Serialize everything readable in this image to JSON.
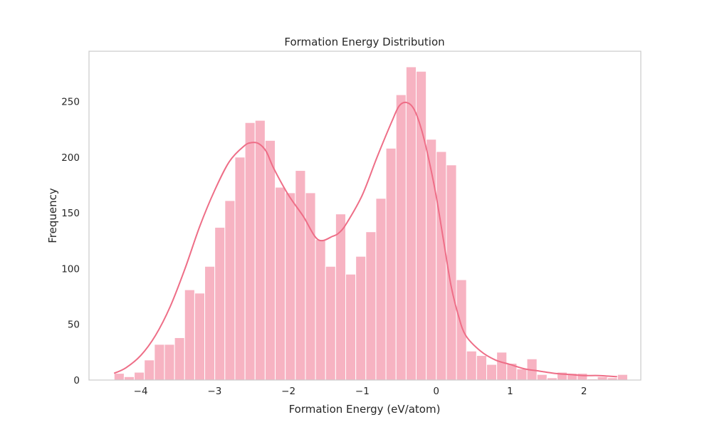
{
  "chart_data": {
    "type": "bar",
    "title": "Formation Energy Distribution",
    "xlabel": "Formation Energy (eV/atom)",
    "ylabel": "Frequency",
    "xlim": [
      -4.7,
      2.77
    ],
    "ylim": [
      0,
      295
    ],
    "x_ticks": [
      {
        "value": -4,
        "label": "−4"
      },
      {
        "value": -3,
        "label": "−3"
      },
      {
        "value": -2,
        "label": "−2"
      },
      {
        "value": -1,
        "label": "−1"
      },
      {
        "value": 0,
        "label": "0"
      },
      {
        "value": 1,
        "label": "1"
      },
      {
        "value": 2,
        "label": "2"
      }
    ],
    "y_ticks": [
      {
        "value": 0,
        "label": "0"
      },
      {
        "value": 50,
        "label": "50"
      },
      {
        "value": 100,
        "label": "100"
      },
      {
        "value": 150,
        "label": "150"
      },
      {
        "value": 200,
        "label": "200"
      },
      {
        "value": 250,
        "label": "250"
      }
    ],
    "grid": false,
    "bins": {
      "x_start": -4.36,
      "bin_width": 0.1363,
      "counts": [
        6,
        3,
        7,
        18,
        32,
        32,
        38,
        81,
        78,
        102,
        137,
        161,
        200,
        231,
        233,
        215,
        173,
        168,
        188,
        168,
        126,
        102,
        149,
        95,
        111,
        133,
        163,
        208,
        256,
        281,
        277,
        216,
        205,
        193,
        90,
        26,
        22,
        14,
        25,
        15,
        10,
        19,
        5,
        2,
        7,
        6,
        6,
        1,
        3,
        2,
        5
      ]
    },
    "kde": {
      "x": [
        -4.36,
        -4.2,
        -4.0,
        -3.8,
        -3.6,
        -3.4,
        -3.2,
        -3.0,
        -2.8,
        -2.6,
        -2.5,
        -2.4,
        -2.3,
        -2.2,
        -2.0,
        -1.8,
        -1.6,
        -1.4,
        -1.3,
        -1.2,
        -1.0,
        -0.8,
        -0.6,
        -0.5,
        -0.4,
        -0.3,
        -0.2,
        -0.1,
        0.0,
        0.1,
        0.2,
        0.3,
        0.4,
        0.6,
        0.8,
        1.0,
        1.2,
        1.4,
        1.6,
        1.8,
        2.0,
        2.2,
        2.45
      ],
      "y": [
        6,
        11,
        22,
        40,
        66,
        100,
        138,
        170,
        196,
        210,
        213,
        212,
        205,
        190,
        166,
        147,
        126,
        129,
        133,
        142,
        166,
        200,
        232,
        246,
        249,
        243,
        225,
        198,
        165,
        125,
        85,
        58,
        40,
        26,
        18,
        14,
        10,
        8,
        6,
        5,
        4,
        4,
        3
      ]
    },
    "colors": {
      "bar_fill": "#f7b3c2",
      "bar_stroke": "#ffffff",
      "kde_line": "#ee6e87",
      "axes_edge": "#cccccc",
      "text": "#262626"
    }
  }
}
